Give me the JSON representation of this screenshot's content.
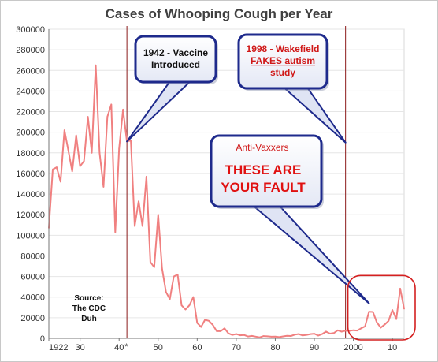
{
  "chart_data": {
    "type": "line",
    "title": "Cases of Whooping Cough per Year",
    "xlabel": "",
    "ylabel": "",
    "xlim": [
      1922,
      2013
    ],
    "ylim": [
      0,
      300000
    ],
    "grid": true,
    "legend": "none",
    "x_ticks": [
      {
        "value": 1922,
        "label": "1922"
      },
      {
        "value": 1930,
        "label": "30"
      },
      {
        "value": 1940,
        "label": "40"
      },
      {
        "value": 1950,
        "label": "50"
      },
      {
        "value": 1960,
        "label": "60"
      },
      {
        "value": 1970,
        "label": "70"
      },
      {
        "value": 1980,
        "label": "80"
      },
      {
        "value": 1990,
        "label": "90"
      },
      {
        "value": 2000,
        "label": "2000"
      },
      {
        "value": 2010,
        "label": "10"
      }
    ],
    "y_ticks": [
      0,
      20000,
      40000,
      60000,
      80000,
      100000,
      120000,
      140000,
      160000,
      180000,
      200000,
      220000,
      240000,
      260000,
      280000,
      300000
    ],
    "x_tick_suffix": "*",
    "series": [
      {
        "color": "#f08080",
        "x": [
          1922,
          1923,
          1924,
          1925,
          1926,
          1927,
          1928,
          1929,
          1930,
          1931,
          1932,
          1933,
          1934,
          1935,
          1936,
          1937,
          1938,
          1939,
          1940,
          1941,
          1942,
          1943,
          1944,
          1945,
          1946,
          1947,
          1948,
          1949,
          1950,
          1951,
          1952,
          1953,
          1954,
          1955,
          1956,
          1957,
          1958,
          1959,
          1960,
          1961,
          1962,
          1963,
          1964,
          1965,
          1966,
          1967,
          1968,
          1969,
          1970,
          1971,
          1972,
          1973,
          1974,
          1975,
          1976,
          1977,
          1978,
          1979,
          1980,
          1981,
          1982,
          1983,
          1984,
          1985,
          1986,
          1987,
          1988,
          1989,
          1990,
          1991,
          1992,
          1993,
          1994,
          1995,
          1996,
          1997,
          1998,
          1999,
          2000,
          2001,
          2002,
          2003,
          2004,
          2005,
          2006,
          2007,
          2008,
          2009,
          2010,
          2011,
          2012,
          2013
        ],
        "values": [
          107000,
          164000,
          166000,
          152000,
          202000,
          182000,
          162000,
          197000,
          167000,
          172000,
          215000,
          180000,
          265000,
          180000,
          147000,
          215000,
          227000,
          103000,
          184000,
          222000,
          191000,
          192000,
          109000,
          133000,
          109000,
          157000,
          74000,
          69000,
          120000,
          68000,
          45000,
          38000,
          60000,
          62000,
          32000,
          28000,
          32000,
          40000,
          15000,
          11000,
          18000,
          17000,
          13000,
          7000,
          7000,
          9700,
          4800,
          3300,
          4200,
          3000,
          3300,
          1800,
          2400,
          1700,
          1000,
          2200,
          2000,
          1600,
          1700,
          1250,
          1900,
          2450,
          2300,
          3600,
          4200,
          2800,
          3400,
          4100,
          4500,
          2700,
          4100,
          6600,
          4600,
          5100,
          7800,
          6500,
          7400,
          7300,
          7900,
          7600,
          9800,
          11600,
          25800,
          25600,
          15600,
          10400,
          13300,
          16900,
          27500,
          18700,
          48300,
          28600
        ]
      }
    ],
    "markers": [
      {
        "year": 1942
      },
      {
        "year": 1998
      }
    ],
    "annotations": [
      {
        "name": "vaccine",
        "lines": [
          "1942 - Vaccine",
          "Introduced"
        ]
      },
      {
        "name": "wakefield",
        "lines": [
          "1998 - Wakefield",
          "FAKES autism",
          "study"
        ]
      },
      {
        "name": "antivax",
        "small": "Anti-Vaxxers",
        "lines": [
          "THESE ARE",
          "YOUR FAULT"
        ]
      },
      {
        "name": "source",
        "lines": [
          "Source:",
          "The CDC",
          "Duh"
        ]
      }
    ]
  }
}
